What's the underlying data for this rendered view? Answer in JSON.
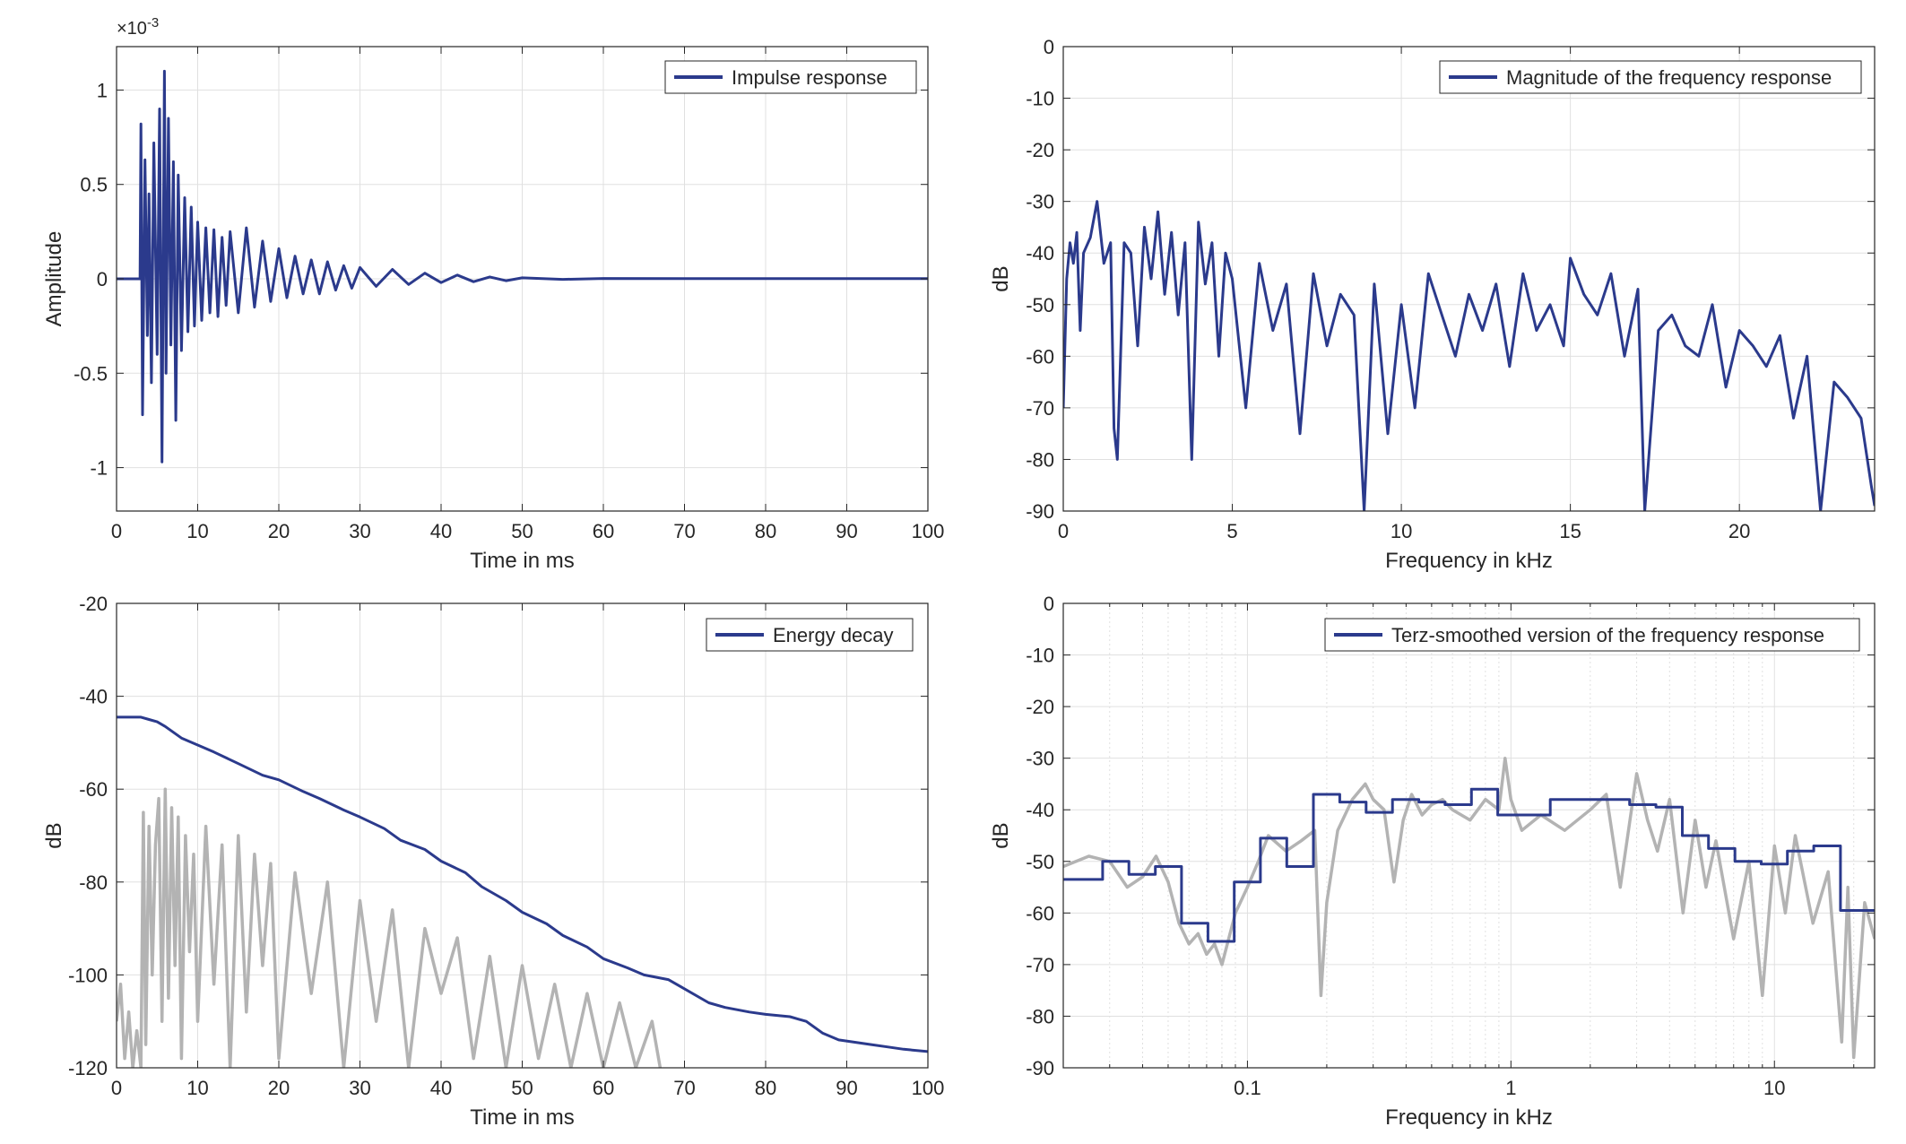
{
  "colors": {
    "main": "#2b3a8c",
    "grey": "#b3b3b3",
    "grid": "#e0e0e0",
    "axis": "#262626"
  },
  "chart_data": [
    {
      "id": "impulse",
      "type": "line",
      "title": "",
      "xlabel": "Time in ms",
      "ylabel": "Amplitude",
      "exponent_label": "×10",
      "exponent_value": "-3",
      "xlim": [
        0,
        100
      ],
      "ylim": [
        -1.23,
        1.23
      ],
      "xticks": [
        0,
        10,
        20,
        30,
        40,
        50,
        60,
        70,
        80,
        90,
        100
      ],
      "xtick_labels": [
        "0",
        "10",
        "20",
        "30",
        "40",
        "50",
        "60",
        "70",
        "80",
        "90",
        "100"
      ],
      "yticks": [
        -1,
        -0.5,
        0,
        0.5,
        1
      ],
      "ytick_labels": [
        "-1",
        "-0.5",
        "0",
        "0.5",
        "1"
      ],
      "grid": true,
      "legend": "top-right",
      "series": [
        {
          "name": "Impulse response",
          "color": "#2b3a8c",
          "x": [
            0,
            2.9,
            3.0,
            3.2,
            3.5,
            3.8,
            4.0,
            4.3,
            4.6,
            5.0,
            5.3,
            5.6,
            5.9,
            6.1,
            6.4,
            6.7,
            7.0,
            7.3,
            7.6,
            8.0,
            8.4,
            8.8,
            9.2,
            9.6,
            10.0,
            10.5,
            11.0,
            11.5,
            12.0,
            12.5,
            13.0,
            13.5,
            14.0,
            15.0,
            16.0,
            17.0,
            18.0,
            19.0,
            20.0,
            21.0,
            22.0,
            23.0,
            24.0,
            25.0,
            26.0,
            27.0,
            28.0,
            29.0,
            30.0,
            32.0,
            34.0,
            36.0,
            38.0,
            40.0,
            42.0,
            44.0,
            46.0,
            48.0,
            50.0,
            55.0,
            60.0,
            70.0,
            80.0,
            90.0,
            100.0
          ],
          "y": [
            0,
            0,
            0.82,
            -0.72,
            0.63,
            -0.3,
            0.45,
            -0.55,
            0.72,
            -0.4,
            0.9,
            -0.97,
            1.1,
            -0.5,
            0.85,
            -0.35,
            0.62,
            -0.75,
            0.55,
            -0.38,
            0.43,
            -0.28,
            0.38,
            -0.25,
            0.3,
            -0.22,
            0.27,
            -0.18,
            0.26,
            -0.2,
            0.22,
            -0.14,
            0.25,
            -0.18,
            0.27,
            -0.15,
            0.2,
            -0.12,
            0.16,
            -0.1,
            0.12,
            -0.08,
            0.1,
            -0.08,
            0.09,
            -0.06,
            0.07,
            -0.05,
            0.06,
            -0.04,
            0.05,
            -0.03,
            0.03,
            -0.02,
            0.02,
            -0.015,
            0.01,
            -0.01,
            0.005,
            -0.003,
            0.002,
            0.001,
            0.001,
            0.001,
            0.001
          ]
        }
      ]
    },
    {
      "id": "magnitude",
      "type": "line",
      "title": "",
      "xlabel": "Frequency in kHz",
      "ylabel": "dB",
      "xlim": [
        0,
        24
      ],
      "ylim": [
        -90,
        0
      ],
      "xticks": [
        0,
        5,
        10,
        15,
        20
      ],
      "xtick_labels": [
        "0",
        "5",
        "10",
        "15",
        "20"
      ],
      "yticks": [
        0,
        -10,
        -20,
        -30,
        -40,
        -50,
        -60,
        -70,
        -80,
        -90
      ],
      "ytick_labels": [
        "0",
        "-10",
        "-20",
        "-30",
        "-40",
        "-50",
        "-60",
        "-70",
        "-80",
        "-90"
      ],
      "grid": true,
      "legend": "top-right",
      "series": [
        {
          "name": "Magnitude of the frequency response",
          "color": "#2b3a8c",
          "x": [
            0,
            0.1,
            0.2,
            0.3,
            0.4,
            0.5,
            0.6,
            0.8,
            1.0,
            1.2,
            1.4,
            1.5,
            1.6,
            1.8,
            2.0,
            2.2,
            2.4,
            2.6,
            2.8,
            3.0,
            3.2,
            3.4,
            3.6,
            3.8,
            4.0,
            4.2,
            4.4,
            4.6,
            4.8,
            5.0,
            5.4,
            5.8,
            6.2,
            6.6,
            7.0,
            7.4,
            7.8,
            8.2,
            8.6,
            8.9,
            9.2,
            9.6,
            10.0,
            10.4,
            10.8,
            11.2,
            11.6,
            12.0,
            12.4,
            12.8,
            13.2,
            13.6,
            14.0,
            14.4,
            14.8,
            15.0,
            15.4,
            15.8,
            16.2,
            16.6,
            17.0,
            17.2,
            17.6,
            18.0,
            18.4,
            18.8,
            19.2,
            19.6,
            20.0,
            20.4,
            20.8,
            21.2,
            21.6,
            22.0,
            22.4,
            22.8,
            23.2,
            23.6,
            23.9,
            24.0
          ],
          "y": [
            -70,
            -45,
            -38,
            -42,
            -36,
            -55,
            -40,
            -37,
            -30,
            -42,
            -38,
            -74,
            -80,
            -38,
            -40,
            -58,
            -35,
            -45,
            -32,
            -48,
            -36,
            -52,
            -38,
            -80,
            -34,
            -46,
            -38,
            -60,
            -40,
            -45,
            -70,
            -42,
            -55,
            -46,
            -75,
            -44,
            -58,
            -48,
            -52,
            -90,
            -46,
            -75,
            -50,
            -70,
            -44,
            -52,
            -60,
            -48,
            -55,
            -46,
            -62,
            -44,
            -55,
            -50,
            -58,
            -41,
            -48,
            -52,
            -44,
            -60,
            -47,
            -90,
            -55,
            -52,
            -58,
            -60,
            -50,
            -66,
            -55,
            -58,
            -62,
            -56,
            -72,
            -60,
            -90,
            -65,
            -68,
            -72,
            -85,
            -89
          ]
        }
      ]
    },
    {
      "id": "energy",
      "type": "line",
      "title": "",
      "xlabel": "Time in ms",
      "ylabel": "dB",
      "xlim": [
        0,
        100
      ],
      "ylim": [
        -120,
        -20
      ],
      "xticks": [
        0,
        10,
        20,
        30,
        40,
        50,
        60,
        70,
        80,
        90,
        100
      ],
      "xtick_labels": [
        "0",
        "10",
        "20",
        "30",
        "40",
        "50",
        "60",
        "70",
        "80",
        "90",
        "100"
      ],
      "yticks": [
        -20,
        -40,
        -60,
        -80,
        -100,
        -120
      ],
      "ytick_labels": [
        "-20",
        "-40",
        "-60",
        "-80",
        "-100",
        "-120"
      ],
      "grid": true,
      "legend": "top-right",
      "series": [
        {
          "name": "",
          "color": "#b3b3b3",
          "x": [
            0,
            0.5,
            1.0,
            1.5,
            2.0,
            2.5,
            3.0,
            3.3,
            3.6,
            4.0,
            4.4,
            4.8,
            5.2,
            5.6,
            6.0,
            6.4,
            6.8,
            7.2,
            7.6,
            8.0,
            8.5,
            9.0,
            9.5,
            10.0,
            11.0,
            12.0,
            13.0,
            14.0,
            15.0,
            16.0,
            17.0,
            18.0,
            19.0,
            20.0,
            22.0,
            24.0,
            26.0,
            28.0,
            30.0,
            32.0,
            34.0,
            36.0,
            38.0,
            40.0,
            42.0,
            44.0,
            46.0,
            48.0,
            50.0,
            52.0,
            54.0,
            56.0,
            58.0,
            60.0,
            62.0,
            64.0,
            66.0,
            67.0
          ],
          "y": [
            -110,
            -102,
            -118,
            -108,
            -120,
            -112,
            -120,
            -65,
            -115,
            -68,
            -100,
            -72,
            -62,
            -110,
            -60,
            -105,
            -64,
            -98,
            -66,
            -118,
            -70,
            -95,
            -74,
            -110,
            -68,
            -102,
            -72,
            -120,
            -70,
            -108,
            -74,
            -98,
            -76,
            -118,
            -78,
            -104,
            -80,
            -120,
            -84,
            -110,
            -86,
            -120,
            -90,
            -104,
            -92,
            -118,
            -96,
            -120,
            -98,
            -118,
            -102,
            -120,
            -104,
            -120,
            -106,
            -120,
            -110,
            -120
          ]
        },
        {
          "name": "Energy decay",
          "color": "#2b3a8c",
          "x": [
            0,
            1,
            2,
            3,
            4,
            5,
            6,
            8,
            10,
            12,
            15,
            18,
            20,
            23,
            25,
            28,
            30,
            33,
            35,
            38,
            40,
            43,
            45,
            48,
            50,
            53,
            55,
            58,
            60,
            63,
            65,
            68,
            70,
            73,
            75,
            78,
            80,
            83,
            85,
            87,
            89,
            91,
            93,
            95,
            97,
            100
          ],
          "y": [
            -44.5,
            -44.5,
            -44.5,
            -44.5,
            -45,
            -45.5,
            -46.5,
            -49,
            -50.5,
            -52,
            -54.5,
            -57,
            -58,
            -60.5,
            -62,
            -64.5,
            -66,
            -68.5,
            -71,
            -73,
            -75.5,
            -78,
            -81,
            -84,
            -86.5,
            -89,
            -91.5,
            -94,
            -96.5,
            -98.5,
            -100,
            -101,
            -103,
            -106,
            -107,
            -108,
            -108.5,
            -109,
            -110,
            -112.5,
            -114,
            -114.5,
            -115,
            -115.5,
            -116,
            -116.5
          ]
        }
      ]
    },
    {
      "id": "terz",
      "type": "line",
      "title": "",
      "xlabel": "Frequency in kHz",
      "ylabel": "dB",
      "xscale": "log",
      "xlim": [
        0.02,
        24
      ],
      "ylim": [
        -90,
        0
      ],
      "xticks": [
        0.1,
        1,
        10
      ],
      "xtick_labels": [
        "0.1",
        "1",
        "10"
      ],
      "minor_xticks": [
        0.03,
        0.04,
        0.05,
        0.06,
        0.07,
        0.08,
        0.09,
        0.2,
        0.3,
        0.4,
        0.5,
        0.6,
        0.7,
        0.8,
        0.9,
        2,
        3,
        4,
        5,
        6,
        7,
        8,
        9,
        20
      ],
      "yticks": [
        0,
        -10,
        -20,
        -30,
        -40,
        -50,
        -60,
        -70,
        -80,
        -90
      ],
      "ytick_labels": [
        "0",
        "-10",
        "-20",
        "-30",
        "-40",
        "-50",
        "-60",
        "-70",
        "-80",
        "-90"
      ],
      "grid": true,
      "legend": "top-right",
      "series": [
        {
          "name": "",
          "color": "#b3b3b3",
          "x": [
            0.02,
            0.025,
            0.03,
            0.035,
            0.04,
            0.045,
            0.05,
            0.055,
            0.06,
            0.065,
            0.07,
            0.075,
            0.08,
            0.09,
            0.1,
            0.11,
            0.12,
            0.14,
            0.16,
            0.18,
            0.19,
            0.2,
            0.22,
            0.25,
            0.28,
            0.3,
            0.33,
            0.36,
            0.39,
            0.42,
            0.46,
            0.5,
            0.55,
            0.6,
            0.7,
            0.8,
            0.9,
            0.95,
            1.0,
            1.1,
            1.3,
            1.6,
            2.0,
            2.3,
            2.6,
            3.0,
            3.3,
            3.6,
            4.0,
            4.5,
            5.0,
            5.5,
            6.0,
            7.0,
            8.0,
            9.0,
            10.0,
            11.0,
            12.0,
            14.0,
            16.0,
            18.0,
            19.0,
            20.0,
            22.0,
            24.0
          ],
          "y": [
            -51,
            -49,
            -50,
            -55,
            -53,
            -49,
            -54,
            -62,
            -66,
            -64,
            -68,
            -66,
            -70,
            -60,
            -55,
            -50,
            -45,
            -48,
            -46,
            -44,
            -76,
            -58,
            -44,
            -38,
            -35,
            -38,
            -40,
            -54,
            -42,
            -37,
            -41,
            -39,
            -38,
            -40,
            -42,
            -38,
            -40,
            -30,
            -38,
            -44,
            -41,
            -44,
            -40,
            -37,
            -55,
            -33,
            -42,
            -48,
            -38,
            -60,
            -42,
            -55,
            -46,
            -65,
            -50,
            -76,
            -47,
            -60,
            -45,
            -62,
            -52,
            -85,
            -55,
            -88,
            -58,
            -65
          ]
        },
        {
          "name": "Terz-smoothed version of the frequency response",
          "color": "#2b3a8c",
          "x": [
            0.02,
            0.0282,
            0.0355,
            0.0447,
            0.0562,
            0.0708,
            0.0891,
            0.112,
            0.141,
            0.178,
            0.224,
            0.282,
            0.355,
            0.447,
            0.562,
            0.708,
            0.891,
            1.12,
            1.41,
            1.78,
            2.24,
            2.82,
            3.55,
            4.47,
            5.62,
            7.08,
            8.91,
            11.2,
            14.1,
            17.8,
            24
          ],
          "y": [
            -53.5,
            -50,
            -52.5,
            -51,
            -62,
            -65.5,
            -54,
            -45.5,
            -51,
            -37,
            -38.5,
            -40.5,
            -38,
            -38.5,
            -39,
            -36,
            -41,
            -41,
            -38,
            -38,
            -38,
            -39,
            -39.5,
            -45,
            -47.5,
            -50,
            -50.5,
            -48,
            -47,
            -59.5,
            -59.5
          ]
        }
      ]
    }
  ]
}
